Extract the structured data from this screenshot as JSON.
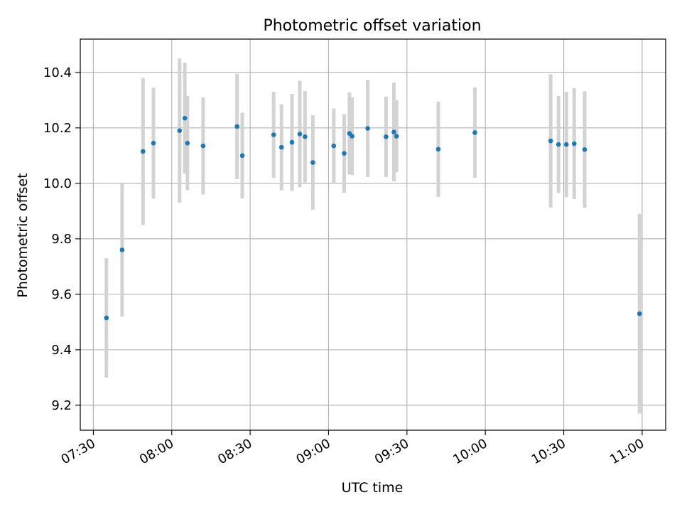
{
  "chart_data": {
    "type": "scatter",
    "title": "Photometric offset variation",
    "xlabel": "UTC time",
    "ylabel": "Photometric offset",
    "xlim": [
      "07:25",
      "11:09"
    ],
    "ylim": [
      9.11,
      10.52
    ],
    "x_ticks": [
      "07:30",
      "08:00",
      "08:30",
      "09:00",
      "09:30",
      "10:00",
      "10:30",
      "11:00"
    ],
    "y_ticks": [
      "9.2",
      "9.4",
      "9.6",
      "9.8",
      "10.0",
      "10.2",
      "10.4"
    ],
    "grid": true,
    "colors": {
      "point": "#1f77b4",
      "errorbar": "#d3d3d3",
      "grid": "#b0b0b0"
    },
    "points": [
      {
        "t": "07:35",
        "y": 9.515,
        "err": 0.215
      },
      {
        "t": "07:41",
        "y": 9.76,
        "err": 0.24
      },
      {
        "t": "07:49",
        "y": 10.115,
        "err": 0.265
      },
      {
        "t": "07:53",
        "y": 10.145,
        "err": 0.2
      },
      {
        "t": "08:03",
        "y": 10.19,
        "err": 0.26
      },
      {
        "t": "08:05",
        "y": 10.235,
        "err": 0.2
      },
      {
        "t": "08:06",
        "y": 10.145,
        "err": 0.17
      },
      {
        "t": "08:12",
        "y": 10.135,
        "err": 0.175
      },
      {
        "t": "08:25",
        "y": 10.205,
        "err": 0.19
      },
      {
        "t": "08:27",
        "y": 10.1,
        "err": 0.155
      },
      {
        "t": "08:39",
        "y": 10.175,
        "err": 0.155
      },
      {
        "t": "08:42",
        "y": 10.13,
        "err": 0.155
      },
      {
        "t": "08:46",
        "y": 10.148,
        "err": 0.175
      },
      {
        "t": "08:49",
        "y": 10.178,
        "err": 0.192
      },
      {
        "t": "08:51",
        "y": 10.168,
        "err": 0.165
      },
      {
        "t": "08:54",
        "y": 10.075,
        "err": 0.17
      },
      {
        "t": "09:02",
        "y": 10.135,
        "err": 0.135
      },
      {
        "t": "09:06",
        "y": 10.108,
        "err": 0.142
      },
      {
        "t": "09:08",
        "y": 10.18,
        "err": 0.148
      },
      {
        "t": "09:09",
        "y": 10.17,
        "err": 0.14
      },
      {
        "t": "09:15",
        "y": 10.198,
        "err": 0.175
      },
      {
        "t": "09:22",
        "y": 10.168,
        "err": 0.145
      },
      {
        "t": "09:25",
        "y": 10.185,
        "err": 0.178
      },
      {
        "t": "09:26",
        "y": 10.17,
        "err": 0.13
      },
      {
        "t": "09:42",
        "y": 10.123,
        "err": 0.172
      },
      {
        "t": "09:56",
        "y": 10.183,
        "err": 0.163
      },
      {
        "t": "10:25",
        "y": 10.153,
        "err": 0.24
      },
      {
        "t": "10:28",
        "y": 10.14,
        "err": 0.175
      },
      {
        "t": "10:31",
        "y": 10.14,
        "err": 0.19
      },
      {
        "t": "10:34",
        "y": 10.143,
        "err": 0.2
      },
      {
        "t": "10:38",
        "y": 10.122,
        "err": 0.21
      },
      {
        "t": "10:59",
        "y": 9.53,
        "err": 0.36
      }
    ]
  }
}
